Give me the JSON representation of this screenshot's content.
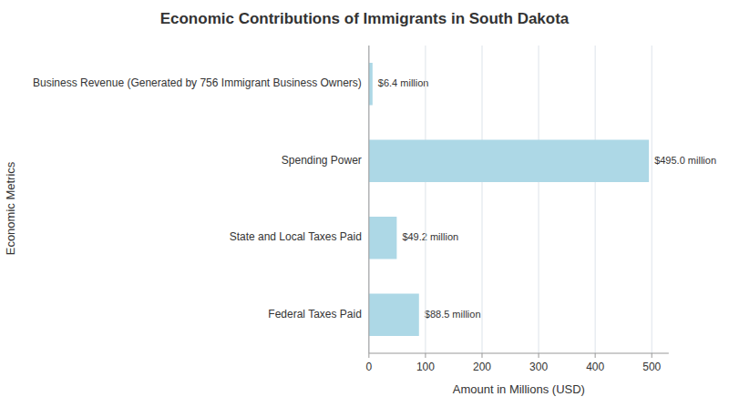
{
  "chart_data": {
    "type": "bar",
    "orientation": "horizontal",
    "title": "Economic Contributions of Immigrants in South Dakota",
    "xlabel": "Amount in Millions (USD)",
    "ylabel": "Economic Metrics",
    "categories": [
      "Business Revenue (Generated by 756 Immigrant Business Owners)",
      "Spending Power",
      "State and Local Taxes Paid",
      "Federal Taxes Paid"
    ],
    "values": [
      6.4,
      495.0,
      49.2,
      88.5
    ],
    "value_labels": [
      "$6.4 million",
      "$495.0 million",
      "$49.2 million",
      "$88.5 million"
    ],
    "color": "#add8e6",
    "xlim": [
      0,
      530
    ],
    "xticks": [
      0,
      100,
      200,
      300,
      400,
      500
    ],
    "grid": true,
    "data_labels": true
  }
}
